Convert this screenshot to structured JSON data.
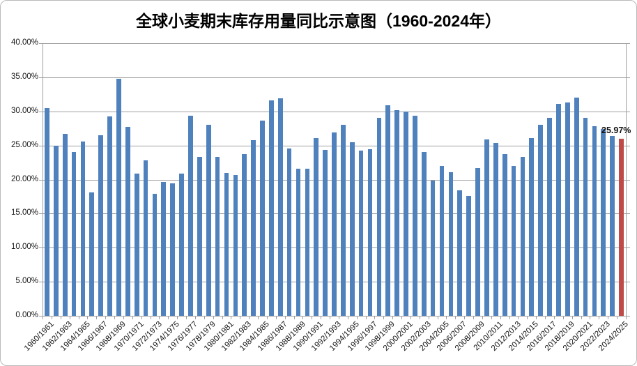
{
  "title": "全球小麦期末库存用量同比示意图（1960-2024年）",
  "annotation": {
    "text": "25.97%"
  },
  "colors": {
    "bar": "#4f81bd",
    "highlight_bar": "#be4b48",
    "gridline": "#9d9d9d",
    "text": "#161616",
    "frame_border": "#b9b9b9"
  },
  "chart_data": {
    "type": "bar",
    "title": "全球小麦期末库存用量同比示意图（1960-2024年）",
    "xlabel": "",
    "ylabel": "",
    "ylim": [
      0,
      40
    ],
    "ytick_step": 5,
    "grid": true,
    "legend": "none",
    "x_label_every": 2,
    "ytick_labels": [
      "0.00%",
      "5.00%",
      "10.00%",
      "15.00%",
      "20.00%",
      "25.00%",
      "30.00%",
      "35.00%",
      "40.00%"
    ],
    "categories": [
      "1960/1961",
      "1961/1962",
      "1962/1963",
      "1963/1964",
      "1964/1965",
      "1965/1966",
      "1966/1967",
      "1967/1968",
      "1968/1969",
      "1969/1970",
      "1970/1971",
      "1971/1972",
      "1972/1973",
      "1973/1974",
      "1974/1975",
      "1975/1976",
      "1976/1977",
      "1977/1978",
      "1978/1979",
      "1979/1980",
      "1980/1981",
      "1981/1982",
      "1982/1983",
      "1983/1984",
      "1984/1985",
      "1985/1986",
      "1986/1987",
      "1987/1988",
      "1988/1989",
      "1989/1990",
      "1990/1991",
      "1991/1992",
      "1992/1993",
      "1993/1994",
      "1994/1995",
      "1995/1996",
      "1996/1997",
      "1997/1998",
      "1998/1999",
      "1999/2000",
      "2000/2001",
      "2001/2002",
      "2002/2003",
      "2003/2004",
      "2004/2005",
      "2005/2006",
      "2006/2007",
      "2007/2008",
      "2008/2009",
      "2009/2010",
      "2010/2011",
      "2011/2012",
      "2012/2013",
      "2013/2014",
      "2014/2015",
      "2015/2016",
      "2016/2017",
      "2017/2018",
      "2018/2019",
      "2019/2020",
      "2020/2021",
      "2021/2022",
      "2022/2023",
      "2023/2024",
      "2024/2025"
    ],
    "values": [
      30.5,
      25.0,
      26.7,
      24.0,
      25.6,
      18.1,
      26.5,
      29.3,
      34.8,
      27.7,
      20.9,
      22.8,
      17.9,
      19.6,
      19.4,
      20.9,
      29.4,
      23.3,
      28.0,
      23.3,
      21.0,
      20.7,
      23.7,
      25.8,
      28.6,
      31.6,
      31.9,
      24.6,
      21.6,
      21.6,
      26.1,
      24.3,
      26.9,
      28.0,
      25.5,
      24.2,
      24.5,
      29.1,
      30.9,
      30.2,
      30.0,
      29.4,
      24.0,
      19.8,
      22.0,
      21.1,
      18.4,
      17.6,
      21.7,
      25.9,
      25.4,
      23.7,
      22.0,
      23.3,
      26.1,
      28.0,
      29.1,
      31.1,
      31.3,
      32.0,
      29.1,
      27.8,
      27.4,
      26.4,
      25.97
    ],
    "highlight_index": 64,
    "annotation": {
      "text": "25.97%",
      "target": "2024/2025"
    }
  }
}
